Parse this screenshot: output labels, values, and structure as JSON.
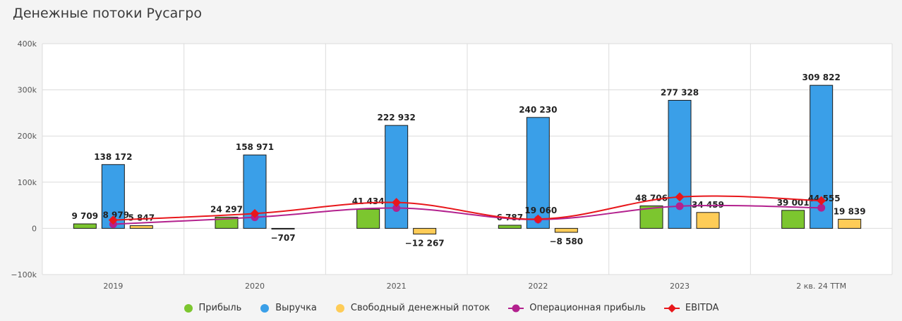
{
  "chart_data": {
    "type": "bar",
    "title": "Денежные потоки Русагро",
    "categories": [
      "2019",
      "2020",
      "2021",
      "2022",
      "2023",
      "2 кв. 24 TTM"
    ],
    "ylim": [
      -100000,
      400000
    ],
    "y_ticks": [
      -100000,
      0,
      100000,
      200000,
      300000,
      400000
    ],
    "y_tick_labels": [
      "−100k",
      "0",
      "100k",
      "200k",
      "300k",
      "400k"
    ],
    "grid": true,
    "legend_position": "bottom",
    "bar_series": [
      {
        "name": "Прибыль",
        "color": "#7cc62f",
        "values": [
          9709,
          24297,
          41434,
          6787,
          48706,
          39001
        ],
        "labels": [
          "9 709",
          "24 297",
          "41 434",
          "6 787",
          "48 706",
          "39 001"
        ]
      },
      {
        "name": "Выручка",
        "color": "#3a9fe8",
        "values": [
          138172,
          158971,
          222932,
          240230,
          277328,
          309822
        ],
        "labels": [
          "138 172",
          "158 971",
          "222 932",
          "240 230",
          "277 328",
          "309 822"
        ]
      },
      {
        "name": "Свободный денежный поток",
        "color": "#fecc57",
        "values": [
          5847,
          -707,
          -12267,
          -8580,
          34459,
          19839
        ],
        "labels": [
          "5 847",
          "−707",
          "−12 267",
          "−8 580",
          "34 459",
          "19 839"
        ]
      }
    ],
    "line_series": [
      {
        "name": "Операционная прибыль",
        "color": "#b3218e",
        "marker": "circle",
        "values": [
          8979,
          24000,
          44000,
          19060,
          48000,
          44555
        ],
        "labels": [
          "8 979",
          "",
          "",
          "19 060",
          "",
          "44 555"
        ]
      },
      {
        "name": "EBITDA",
        "color": "#e8171b",
        "marker": "diamond",
        "values": [
          18000,
          32000,
          56000,
          20000,
          68000,
          60000
        ],
        "labels": [
          "",
          "",
          "",
          "",
          "",
          ""
        ]
      }
    ]
  }
}
